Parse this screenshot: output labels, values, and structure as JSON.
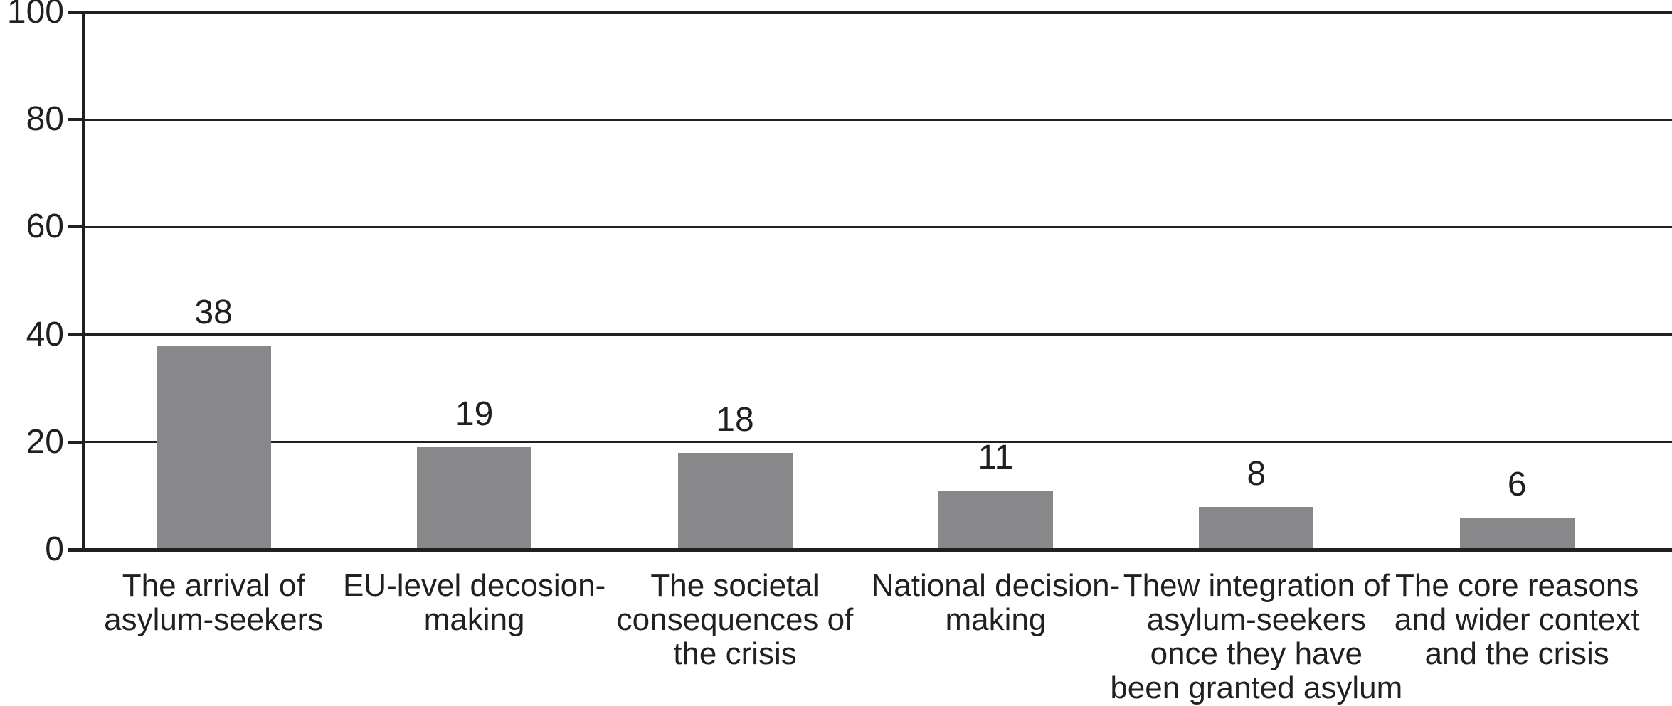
{
  "chart_data": {
    "type": "bar",
    "title": "",
    "xlabel": "",
    "ylabel": "",
    "categories": [
      "The arrival of\nasylum-seekers",
      "EU-level decosion-\nmaking",
      "The societal\nconsequences of\nthe crisis",
      "National decision-\nmaking",
      "Thew integration of\nasylum-seekers\nonce they have\nbeen granted asylum",
      "The core reasons\nand wider context\nand the crisis"
    ],
    "values": [
      38,
      19,
      18,
      11,
      8,
      6
    ],
    "value_labels": [
      "38",
      "19",
      "18",
      "11",
      "8",
      "6"
    ],
    "ylim": [
      0,
      100
    ],
    "yticks": [
      0,
      20,
      40,
      60,
      80,
      100
    ],
    "grid": true,
    "legend": "none",
    "bar_color": "#88888b",
    "axis_color": "#231f20",
    "background_color": "#ffffff"
  }
}
